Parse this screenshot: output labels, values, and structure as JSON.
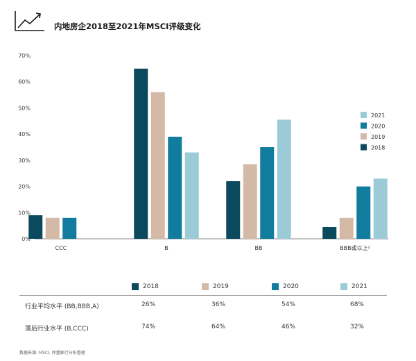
{
  "title": "内地房企2018至2021年MSCI评级变化",
  "source": "数据来源: MSCI, 仲量联行分析整理",
  "colors": {
    "2018": "#0b4a5e",
    "2019": "#d4b9a6",
    "2020": "#117c9d",
    "2021": "#9ccbd8"
  },
  "chart_data": {
    "type": "bar",
    "categories": [
      "CCC",
      "B",
      "BB",
      "BBB或以上²"
    ],
    "series": [
      {
        "name": "2018",
        "values": [
          9,
          65,
          22,
          4.5
        ]
      },
      {
        "name": "2019",
        "values": [
          8,
          56,
          28.5,
          8
        ]
      },
      {
        "name": "2020",
        "values": [
          8,
          39,
          35,
          20
        ]
      },
      {
        "name": "2021",
        "values": [
          null,
          33,
          45.5,
          23
        ]
      }
    ],
    "ylim": [
      0,
      70
    ],
    "yticks": [
      "0%",
      "10%",
      "20%",
      "30%",
      "40%",
      "50%",
      "60%",
      "70%"
    ],
    "legend": {
      "position": "right",
      "order": [
        "2021",
        "2020",
        "2019",
        "2018"
      ]
    }
  },
  "table": {
    "years": [
      "2018",
      "2019",
      "2020",
      "2021"
    ],
    "rows": [
      {
        "label": "行业平均水平 (BB,BBB,A)",
        "values": [
          "26%",
          "36%",
          "54%",
          "68%"
        ]
      },
      {
        "label": "落后行业水平 (B,CCC)",
        "values": [
          "74%",
          "64%",
          "46%",
          "32%"
        ]
      }
    ]
  }
}
